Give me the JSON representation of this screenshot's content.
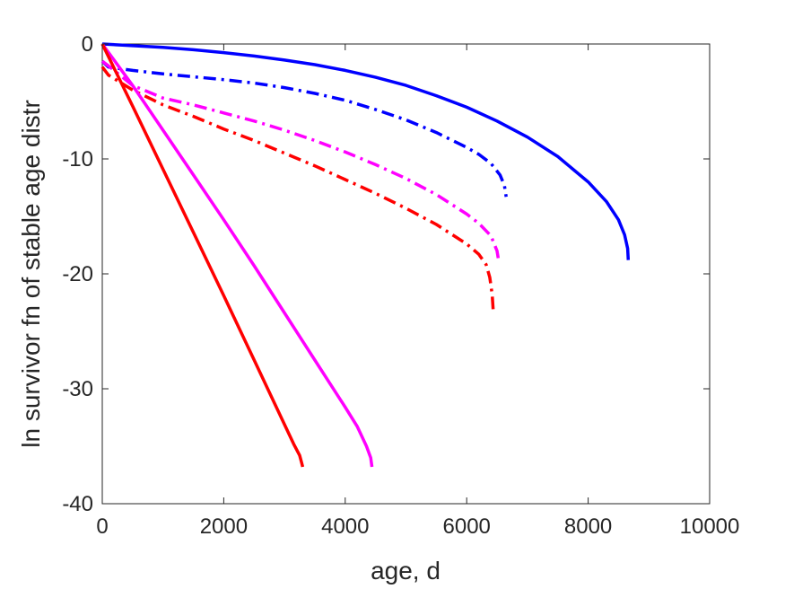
{
  "chart_data": {
    "type": "line",
    "xlabel": "age, d",
    "ylabel": "ln survivor fn of stable age distr",
    "xlim": [
      0,
      10000
    ],
    "ylim": [
      -40,
      0
    ],
    "xticks": [
      0,
      2000,
      4000,
      6000,
      8000,
      10000
    ],
    "yticks": [
      0,
      -10,
      -20,
      -30,
      -40
    ],
    "xtick_labels": [
      "0",
      "2000",
      "4000",
      "6000",
      "8000",
      "10000"
    ],
    "ytick_labels": [
      "0",
      "-10",
      "-20",
      "-30",
      "-40"
    ],
    "grid": false,
    "legend": "none",
    "series": [
      {
        "color": "#0000ff",
        "dash": "solid",
        "x": [
          0,
          500,
          1000,
          1500,
          2000,
          2500,
          3000,
          3500,
          4000,
          4500,
          5000,
          5500,
          6000,
          6500,
          7000,
          7500,
          8000,
          8300,
          8500,
          8600,
          8650,
          8660
        ],
        "y": [
          0,
          -0.15,
          -0.3,
          -0.5,
          -0.75,
          -1.05,
          -1.4,
          -1.8,
          -2.3,
          -2.9,
          -3.6,
          -4.5,
          -5.5,
          -6.7,
          -8.1,
          -9.8,
          -12.0,
          -13.7,
          -15.3,
          -16.6,
          -17.8,
          -18.8
        ]
      },
      {
        "color": "#0000ff",
        "dash": "dashdot",
        "x": [
          0,
          100,
          500,
          1000,
          1500,
          2000,
          2500,
          3000,
          3500,
          4000,
          4500,
          5000,
          5500,
          6000,
          6200,
          6400,
          6550,
          6620,
          6650
        ],
        "y": [
          -1.5,
          -2.0,
          -2.3,
          -2.6,
          -2.85,
          -3.1,
          -3.4,
          -3.8,
          -4.3,
          -4.9,
          -5.7,
          -6.6,
          -7.7,
          -9.0,
          -9.6,
          -10.4,
          -11.4,
          -12.3,
          -13.3
        ]
      },
      {
        "color": "#ff00ff",
        "dash": "dashdot",
        "x": [
          0,
          100,
          500,
          1000,
          1500,
          2000,
          2500,
          3000,
          3500,
          4000,
          4500,
          5000,
          5500,
          6000,
          6200,
          6400,
          6500,
          6530
        ],
        "y": [
          -1.5,
          -1.9,
          -3.6,
          -4.7,
          -5.3,
          -6.0,
          -6.7,
          -7.5,
          -8.4,
          -9.4,
          -10.5,
          -11.7,
          -13.1,
          -14.8,
          -15.6,
          -16.7,
          -18.0,
          -19.0
        ]
      },
      {
        "color": "#ff0000",
        "dash": "dashdot",
        "x": [
          0,
          100,
          500,
          1000,
          1500,
          2000,
          2500,
          3000,
          3500,
          4000,
          4500,
          5000,
          5500,
          6000,
          6200,
          6320,
          6380,
          6420,
          6440
        ],
        "y": [
          -2.0,
          -2.7,
          -4.0,
          -5.3,
          -6.3,
          -7.4,
          -8.4,
          -9.5,
          -10.6,
          -11.8,
          -13.0,
          -14.3,
          -15.7,
          -17.4,
          -18.3,
          -19.2,
          -20.3,
          -21.8,
          -23.5
        ]
      },
      {
        "color": "#ff00ff",
        "dash": "solid",
        "x": [
          0,
          500,
          1000,
          1500,
          2000,
          2500,
          3000,
          3500,
          4000,
          4200,
          4350,
          4420,
          4440
        ],
        "y": [
          0,
          -3.6,
          -7.5,
          -11.4,
          -15.3,
          -19.3,
          -23.4,
          -27.5,
          -31.6,
          -33.3,
          -35.0,
          -36.0,
          -36.8
        ]
      },
      {
        "color": "#ff0000",
        "dash": "solid",
        "x": [
          0,
          500,
          1000,
          1500,
          2000,
          2500,
          3000,
          3150,
          3250,
          3280,
          3300
        ],
        "y": [
          0,
          -5.4,
          -10.9,
          -16.4,
          -21.9,
          -27.5,
          -33.1,
          -34.8,
          -35.8,
          -36.4,
          -36.8
        ]
      }
    ]
  }
}
